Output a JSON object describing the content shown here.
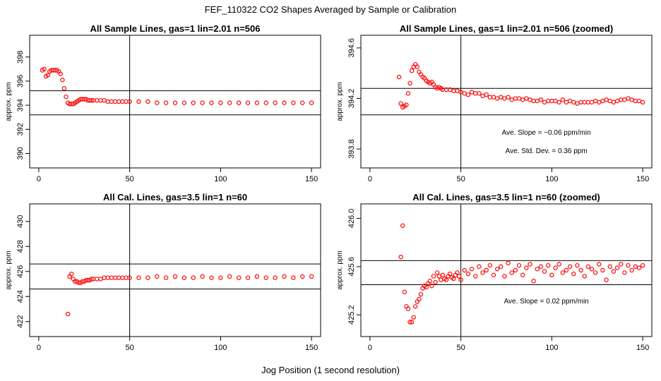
{
  "figure": {
    "title": "FEF_110322  CO2 Shapes Averaged by Sample or Calibration",
    "xlabel": "Jog Position (1 second resolution)"
  },
  "chart_data": [
    {
      "type": "scatter",
      "title": "All Sample Lines, gas=1 lin=2.01 n=506",
      "xlabel": "",
      "ylabel": "approx. ppm",
      "xlim": [
        -5,
        155
      ],
      "ylim": [
        388.8,
        399.8
      ],
      "xticks": [
        0,
        50,
        100,
        150
      ],
      "yticks": [
        390,
        392,
        394,
        396,
        398
      ],
      "vline": 50,
      "hlines": [
        395.2,
        393.2
      ],
      "series": [
        {
          "color": "#ff0000",
          "x": [
            2,
            3,
            4,
            5,
            6,
            7,
            8,
            9,
            10,
            11,
            12,
            13,
            14,
            15,
            16,
            17,
            18,
            19,
            20,
            21,
            22,
            23,
            24,
            25,
            26,
            27,
            28,
            29,
            30,
            32,
            34,
            36,
            38,
            40,
            42,
            44,
            46,
            48,
            50,
            55,
            60,
            65,
            70,
            75,
            80,
            85,
            90,
            95,
            100,
            105,
            110,
            115,
            120,
            125,
            130,
            135,
            140,
            145,
            150
          ],
          "y": [
            396.9,
            397.0,
            396.4,
            396.5,
            396.8,
            396.9,
            396.9,
            396.9,
            396.9,
            396.8,
            396.6,
            396.1,
            395.4,
            394.7,
            394.2,
            394.1,
            394.1,
            394.1,
            394.2,
            394.3,
            394.4,
            394.5,
            394.5,
            394.5,
            394.5,
            394.4,
            394.4,
            394.4,
            394.4,
            394.4,
            394.4,
            394.4,
            394.3,
            394.3,
            394.3,
            394.3,
            394.3,
            394.3,
            394.3,
            394.3,
            394.3,
            394.2,
            394.2,
            394.2,
            394.2,
            394.2,
            394.2,
            394.2,
            394.2,
            394.2,
            394.2,
            394.2,
            394.2,
            394.2,
            394.2,
            394.2,
            394.2,
            394.2,
            394.2
          ]
        }
      ]
    },
    {
      "type": "scatter",
      "title": "All Sample Lines, gas=1 lin=2.01 n=506 (zoomed)",
      "xlabel": "",
      "ylabel": "approx. ppm",
      "xlim": [
        -5,
        155
      ],
      "ylim": [
        393.65,
        394.7
      ],
      "xticks": [
        0,
        50,
        100,
        150
      ],
      "yticks": [
        393.8,
        394.2,
        394.6
      ],
      "vline": 50,
      "hlines": [
        394.28,
        394.07
      ],
      "annotations": [
        "Ave. Slope =  −0.06  ppm/min",
        "Ave. Std. Dev. =  0.36  ppm"
      ],
      "series": [
        {
          "color": "#ff0000",
          "x": [
            16,
            17,
            18,
            19,
            20,
            21,
            22,
            23,
            24,
            25,
            26,
            27,
            28,
            29,
            30,
            31,
            32,
            33,
            34,
            35,
            36,
            37,
            38,
            39,
            40,
            42,
            44,
            46,
            48,
            50,
            52,
            54,
            56,
            58,
            60,
            62,
            64,
            66,
            68,
            70,
            72,
            74,
            76,
            78,
            80,
            82,
            84,
            86,
            88,
            90,
            92,
            94,
            96,
            98,
            100,
            102,
            104,
            106,
            108,
            110,
            112,
            114,
            116,
            118,
            120,
            122,
            124,
            126,
            128,
            130,
            132,
            134,
            136,
            138,
            140,
            142,
            144,
            146,
            148,
            150
          ],
          "y": [
            394.37,
            394.16,
            394.13,
            394.14,
            394.15,
            394.24,
            394.32,
            394.42,
            394.45,
            394.47,
            394.45,
            394.41,
            394.39,
            394.37,
            394.36,
            394.34,
            394.33,
            394.32,
            394.33,
            394.31,
            394.29,
            394.28,
            394.29,
            394.28,
            394.27,
            394.27,
            394.27,
            394.26,
            394.26,
            394.25,
            394.24,
            394.23,
            394.25,
            394.24,
            394.24,
            394.22,
            394.23,
            394.21,
            394.21,
            394.2,
            394.21,
            394.2,
            394.21,
            394.19,
            394.2,
            394.2,
            394.19,
            394.2,
            394.19,
            394.18,
            394.18,
            394.19,
            394.17,
            394.18,
            394.18,
            394.18,
            394.17,
            394.19,
            394.17,
            394.18,
            394.17,
            394.16,
            394.17,
            394.17,
            394.17,
            394.17,
            394.18,
            394.17,
            394.18,
            394.19,
            394.18,
            394.17,
            394.18,
            394.19,
            394.19,
            394.2,
            394.19,
            394.18,
            394.18,
            394.17
          ]
        }
      ]
    },
    {
      "type": "scatter",
      "title": "All Cal. Lines, gas=3.5 lin=1 n=60",
      "xlabel": "",
      "ylabel": "approx. ppm",
      "xlim": [
        -5,
        155
      ],
      "ylim": [
        420.8,
        431.4
      ],
      "xticks": [
        0,
        50,
        100,
        150
      ],
      "yticks": [
        422,
        424,
        426,
        428,
        430
      ],
      "vline": 50,
      "hlines": [
        426.6,
        424.6
      ],
      "series": [
        {
          "color": "#ff0000",
          "x": [
            16,
            17,
            18,
            19,
            20,
            21,
            22,
            23,
            24,
            25,
            26,
            27,
            28,
            29,
            30,
            32,
            34,
            36,
            38,
            40,
            42,
            44,
            46,
            48,
            50,
            55,
            60,
            65,
            70,
            75,
            80,
            85,
            90,
            95,
            100,
            105,
            110,
            115,
            120,
            125,
            130,
            135,
            140,
            145,
            150
          ],
          "y": [
            422.6,
            425.6,
            425.8,
            425.4,
            425.2,
            425.2,
            425.1,
            425.1,
            425.2,
            425.2,
            425.3,
            425.3,
            425.3,
            425.4,
            425.4,
            425.4,
            425.4,
            425.5,
            425.5,
            425.5,
            425.5,
            425.5,
            425.5,
            425.5,
            425.5,
            425.5,
            425.5,
            425.6,
            425.5,
            425.6,
            425.5,
            425.5,
            425.6,
            425.5,
            425.5,
            425.6,
            425.5,
            425.5,
            425.6,
            425.5,
            425.5,
            425.6,
            425.5,
            425.6,
            425.6
          ]
        }
      ]
    },
    {
      "type": "scatter",
      "title": "All Cal. Lines, gas=3.5 lin=1 n=60 (zoomed)",
      "xlabel": "",
      "ylabel": "approx. ppm",
      "xlim": [
        -5,
        155
      ],
      "ylim": [
        425.02,
        426.12
      ],
      "xticks": [
        0,
        50,
        100,
        150
      ],
      "yticks": [
        425.2,
        425.6,
        426.0
      ],
      "vline": 50,
      "hlines": [
        425.65,
        425.45
      ],
      "annotations": [
        "Ave. Slope =  0.02  ppm/min"
      ],
      "series": [
        {
          "color": "#ff0000",
          "x": [
            17,
            18,
            19,
            20,
            21,
            22,
            23,
            24,
            25,
            26,
            27,
            28,
            29,
            30,
            31,
            32,
            33,
            34,
            35,
            36,
            37,
            38,
            39,
            40,
            41,
            42,
            43,
            44,
            45,
            46,
            47,
            48,
            49,
            50,
            52,
            54,
            56,
            58,
            60,
            62,
            64,
            66,
            68,
            70,
            72,
            74,
            76,
            78,
            80,
            82,
            84,
            86,
            88,
            90,
            92,
            94,
            96,
            98,
            100,
            102,
            104,
            106,
            108,
            110,
            112,
            114,
            116,
            118,
            120,
            122,
            124,
            126,
            128,
            130,
            132,
            134,
            136,
            138,
            140,
            142,
            144,
            146,
            148,
            150
          ],
          "y": [
            425.68,
            425.94,
            425.39,
            425.27,
            425.25,
            425.14,
            425.14,
            425.18,
            425.27,
            425.31,
            425.33,
            425.37,
            425.42,
            425.44,
            425.43,
            425.46,
            425.48,
            425.44,
            425.52,
            425.47,
            425.55,
            425.52,
            425.49,
            425.53,
            425.5,
            425.49,
            425.52,
            425.54,
            425.51,
            425.5,
            425.53,
            425.55,
            425.52,
            425.49,
            425.57,
            425.54,
            425.58,
            425.52,
            425.6,
            425.55,
            425.57,
            425.61,
            425.53,
            425.58,
            425.6,
            425.52,
            425.63,
            425.55,
            425.57,
            425.61,
            425.53,
            425.59,
            425.62,
            425.48,
            425.58,
            425.6,
            425.56,
            425.61,
            425.53,
            425.59,
            425.62,
            425.55,
            425.57,
            425.6,
            425.54,
            425.61,
            425.57,
            425.52,
            425.6,
            425.58,
            425.55,
            425.62,
            425.57,
            425.49,
            425.6,
            425.56,
            425.59,
            425.62,
            425.55,
            425.61,
            425.57,
            425.6,
            425.59,
            425.61
          ]
        }
      ]
    }
  ]
}
